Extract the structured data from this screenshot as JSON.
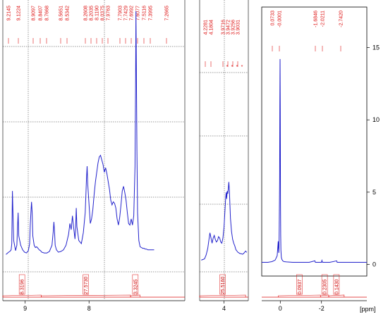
{
  "chart_data": {
    "type": "line",
    "title": "",
    "xlabel": "[ppm]",
    "ylabel": "",
    "x_axis_reversed": true,
    "line_color": "#2222cc",
    "annotation_color": "#dd1111",
    "grid": true,
    "grid_style": "dashed",
    "panels": [
      {
        "id": "aromatic",
        "xlim": [
          9.35,
          6.5
        ],
        "x_ticks": [
          {
            "label": "9",
            "value": 9
          },
          {
            "label": "8",
            "value": 8
          }
        ],
        "peak_labels": [
          "9.2145",
          "9.1224",
          "8.9097",
          "8.8407",
          "8.7668",
          "8.5651",
          "8.5342",
          "8.2608",
          "8.2035",
          "8.1190",
          "8.0375",
          "7.9763",
          "7.7903",
          "7.7429",
          "7.6992",
          "7.6077",
          "7.5116",
          "7.3995",
          "7.2665"
        ],
        "integrals": [
          {
            "label": "8.3196",
            "from": 9.35,
            "to": 8.75
          },
          {
            "label": "27.5730",
            "from": 8.75,
            "to": 7.35
          },
          {
            "label": "3.3245",
            "from": 7.35,
            "to": 7.2
          }
        ],
        "series": {
          "x": [
            9.3,
            9.26,
            9.24,
            9.22,
            9.21,
            9.2,
            9.18,
            9.15,
            9.13,
            9.12,
            9.11,
            9.1,
            9.07,
            9.04,
            9.01,
            8.98,
            8.95,
            8.93,
            8.92,
            8.91,
            8.9,
            8.89,
            8.88,
            8.86,
            8.84,
            8.82,
            8.8,
            8.78,
            8.76,
            8.74,
            8.7,
            8.66,
            8.62,
            8.58,
            8.56,
            8.55,
            8.54,
            8.53,
            8.51,
            8.48,
            8.44,
            8.4,
            8.36,
            8.32,
            8.3,
            8.28,
            8.26,
            8.24,
            8.22,
            8.21,
            8.2,
            8.19,
            8.16,
            8.12,
            8.09,
            8.06,
            8.04,
            8.03,
            8.02,
            7.98,
            7.96,
            7.94,
            7.92,
            7.9,
            7.88,
            7.86,
            7.84,
            7.82,
            7.8,
            7.78,
            7.76,
            7.74,
            7.72,
            7.7,
            7.68,
            7.66,
            7.64,
            7.62,
            7.6,
            7.58,
            7.56,
            7.54,
            7.52,
            7.5,
            7.48,
            7.46,
            7.44,
            7.42,
            7.4,
            7.38,
            7.36,
            7.34,
            7.32,
            7.3,
            7.28,
            7.27,
            7.265,
            7.26,
            7.25,
            7.24,
            7.22,
            7.2,
            7.18,
            7.16,
            7.14,
            7.12,
            7.1,
            7.08,
            7.06,
            7.04,
            7.02,
            7.0,
            6.98
          ],
          "y": [
            0.3,
            0.45,
            0.5,
            0.6,
            1.0,
            4.4,
            1.2,
            0.55,
            0.9,
            2.0,
            3.0,
            1.5,
            0.9,
            0.6,
            0.45,
            0.4,
            0.55,
            1.0,
            2.2,
            3.0,
            3.7,
            3.0,
            1.5,
            0.9,
            0.75,
            0.8,
            0.7,
            0.6,
            0.55,
            0.45,
            0.4,
            0.4,
            0.5,
            0.9,
            1.8,
            2.4,
            1.8,
            0.9,
            0.6,
            0.45,
            0.5,
            0.6,
            0.9,
            1.6,
            2.3,
            1.9,
            2.8,
            2.0,
            1.3,
            2.0,
            3.3,
            2.1,
            1.2,
            1.0,
            1.7,
            3.0,
            5.2,
            6.0,
            4.8,
            2.3,
            2.6,
            3.2,
            4.2,
            5.0,
            5.6,
            6.2,
            6.6,
            6.7,
            6.4,
            6.1,
            5.6,
            5.9,
            5.5,
            5.0,
            4.5,
            3.8,
            3.5,
            3.7,
            3.6,
            3.3,
            2.6,
            2.2,
            2.7,
            3.5,
            4.4,
            4.7,
            4.3,
            3.8,
            3.0,
            2.3,
            2.2,
            2.6,
            2.2,
            2.8,
            6.0,
            12.0,
            16.0,
            13.0,
            7.0,
            3.0,
            1.2,
            0.8,
            0.75,
            0.7,
            0.7,
            0.65,
            0.65,
            0.6,
            0.6,
            0.6,
            0.6,
            0.6,
            0.6
          ]
        }
      },
      {
        "id": "aliphatic",
        "xlim": [
          4.45,
          3.55
        ],
        "x_ticks": [
          {
            "label": "4",
            "value": 4
          }
        ],
        "peak_labels": [
          "4.2281",
          "4.1804",
          "3.9716",
          "3.9472",
          "3.9256",
          "3.9031"
        ],
        "integrals": [
          {
            "label": "25.5160",
            "from": 4.45,
            "to": 3.6
          }
        ],
        "series": {
          "x": [
            4.42,
            4.39,
            4.36,
            4.33,
            4.3,
            4.28,
            4.26,
            4.24,
            4.22,
            4.2,
            4.18,
            4.16,
            4.14,
            4.12,
            4.1,
            4.08,
            4.06,
            4.04,
            4.02,
            4.0,
            3.98,
            3.97,
            3.96,
            3.95,
            3.94,
            3.93,
            3.92,
            3.91,
            3.9,
            3.89,
            3.88,
            3.86,
            3.84,
            3.82,
            3.8,
            3.78,
            3.76,
            3.74,
            3.72,
            3.7,
            3.68,
            3.66,
            3.64,
            3.62,
            3.6,
            3.58
          ],
          "y": [
            0.3,
            0.35,
            0.4,
            0.7,
            1.2,
            1.8,
            2.4,
            2.0,
            1.6,
            2.0,
            2.2,
            1.9,
            1.7,
            1.8,
            2.1,
            2.0,
            1.7,
            1.6,
            2.0,
            2.8,
            4.2,
            5.0,
            5.5,
            5.0,
            5.6,
            5.4,
            5.8,
            6.3,
            5.6,
            4.6,
            3.5,
            2.5,
            1.9,
            1.6,
            1.4,
            1.1,
            1.0,
            0.9,
            0.85,
            0.8,
            0.8,
            0.75,
            0.8,
            0.9,
            1.0,
            0.9
          ]
        }
      },
      {
        "id": "full",
        "xlim": [
          0.9,
          -4.2
        ],
        "ylim": [
          -0.8,
          17.8
        ],
        "x_ticks": [
          {
            "label": "0",
            "value": 0
          },
          {
            "label": "-2",
            "value": -2
          }
        ],
        "y_ticks": [
          {
            "label": "0",
            "value": 0
          },
          {
            "label": "5",
            "value": 5
          },
          {
            "label": "10",
            "value": 10
          },
          {
            "label": "15",
            "value": 15
          }
        ],
        "peak_labels": [
          "0.0733",
          "-0.0001",
          "-1.6846",
          "-2.0211",
          "-2.7420"
        ],
        "integrals": [
          {
            "label": "0.0937",
            "from": 0.1,
            "to": -1.95
          },
          {
            "label": "0.2305",
            "from": -1.95,
            "to": -2.35
          },
          {
            "label": "0.1430",
            "from": -2.35,
            "to": -3.1
          }
        ],
        "series": {
          "x": [
            0.9,
            0.6,
            0.4,
            0.25,
            0.15,
            0.12,
            0.1,
            0.08,
            0.07,
            0.06,
            0.05,
            0.03,
            0.02,
            0.01,
            0.0,
            -0.01,
            -0.02,
            -0.03,
            -0.05,
            -0.08,
            -0.12,
            -0.18,
            -0.3,
            -0.6,
            -1.0,
            -1.4,
            -1.68,
            -1.7,
            -2.0,
            -2.02,
            -2.05,
            -2.4,
            -2.74,
            -2.76,
            -3.2,
            -3.8,
            -4.2
          ],
          "y": [
            0.15,
            0.15,
            0.2,
            0.3,
            0.6,
            1.2,
            1.6,
            0.9,
            0.8,
            1.1,
            2.5,
            6.0,
            11.0,
            14.2,
            10.8,
            4.5,
            2.0,
            1.0,
            0.5,
            0.35,
            0.25,
            0.2,
            0.18,
            0.15,
            0.15,
            0.15,
            0.25,
            0.15,
            0.15,
            0.28,
            0.15,
            0.15,
            0.25,
            0.15,
            0.15,
            0.15,
            0.15
          ]
        }
      }
    ]
  }
}
